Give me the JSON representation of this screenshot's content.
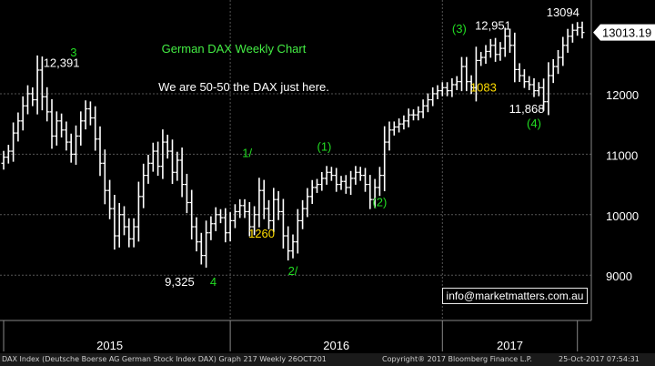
{
  "chart_data": {
    "type": "ohlc",
    "title": "German DAX Weekly Chart",
    "subtitle": "We are 50-50 the DAX just here.",
    "x_labels": [
      "2015",
      "2016",
      "2017"
    ],
    "y_ticks": [
      9000,
      10000,
      11000,
      12000
    ],
    "ylim": [
      8250,
      13550
    ],
    "last_price": "13013.19",
    "grid": true,
    "closes": [
      10950,
      11050,
      11350,
      11550,
      11800,
      12000,
      11900,
      12391,
      11950,
      11700,
      11300,
      11550,
      11400,
      11200,
      11000,
      11300,
      11550,
      11750,
      11600,
      11250,
      10850,
      10400,
      10100,
      9650,
      10000,
      9800,
      9600,
      9800,
      10300,
      10650,
      10850,
      11050,
      10800,
      11200,
      11050,
      10700,
      10900,
      10500,
      10200,
      9800,
      9550,
      9325,
      9700,
      9850,
      10000,
      9950,
      9700,
      9900,
      10050,
      10150,
      10050,
      9800,
      10000,
      10400,
      10100,
      9900,
      10250,
      10050,
      9650,
      9400,
      9550,
      9900,
      10100,
      10300,
      10450,
      10500,
      10600,
      10700,
      10650,
      10500,
      10550,
      10450,
      10600,
      10700,
      10650,
      10500,
      10250,
      10450,
      10650,
      11200,
      11400,
      11450,
      11500,
      11550,
      11650,
      11650,
      11700,
      11800,
      11900,
      12000,
      12050,
      12100,
      12050,
      12150,
      12200,
      12450,
      12200,
      12100,
      12550,
      12600,
      12700,
      12800,
      12650,
      12750,
      12951,
      12800,
      12400,
      12300,
      12200,
      12150,
      12050,
      12100,
      11868,
      12300,
      12450,
      12600,
      12800,
      12950,
      13050,
      13094,
      13013
    ],
    "series": [],
    "annotations": [
      {
        "text": "3",
        "color": "#22dd22",
        "x": 14.5,
        "y": 12620
      },
      {
        "text": "12,391",
        "color": "#ffffff",
        "x": 12.0,
        "y": 12440
      },
      {
        "text": "9,325",
        "color": "#ffffff",
        "x": 36.5,
        "y": 8820
      },
      {
        "text": "4",
        "color": "#22dd22",
        "x": 43.5,
        "y": 8820
      },
      {
        "text": "1/",
        "color": "#22dd22",
        "x": 50.5,
        "y": 10950
      },
      {
        "text": "1260",
        "color": "#ffdd00",
        "x": 53.5,
        "y": 9620
      },
      {
        "text": "2/",
        "color": "#22dd22",
        "x": 60.0,
        "y": 9000
      },
      {
        "text": "(1)",
        "color": "#22dd22",
        "x": 66.5,
        "y": 11060
      },
      {
        "text": "(2)",
        "color": "#22dd22",
        "x": 78.0,
        "y": 10140
      },
      {
        "text": "(3)",
        "color": "#22dd22",
        "x": 94.5,
        "y": 13010
      },
      {
        "text": "12,951",
        "color": "#ffffff",
        "x": 101.5,
        "y": 13060
      },
      {
        "text": "1083",
        "color": "#ffdd00",
        "x": 99.5,
        "y": 12040
      },
      {
        "text": "13094",
        "color": "#ffffff",
        "x": 116.0,
        "y": 13280
      },
      {
        "text": "11,868",
        "color": "#ffffff",
        "x": 108.5,
        "y": 11680
      },
      {
        "text": "(4)",
        "color": "#22dd22",
        "x": 110.0,
        "y": 11440
      }
    ]
  },
  "email": "info@marketmatters.com.au",
  "footer": {
    "left": "DAX Index (Deutsche Boerse AG German Stock Index DAX) Graph 217  Weekly 26OCT201",
    "mid": "Copyright® 2017 Bloomberg Finance L.P.",
    "right": "25-Oct-2017 07:54:31"
  },
  "colors": {
    "background": "#000000",
    "bars": "#ffffff",
    "grid": "#555555",
    "title": "#44ee44",
    "price_box_bg": "#ffffff",
    "price_box_text": "#000000"
  }
}
